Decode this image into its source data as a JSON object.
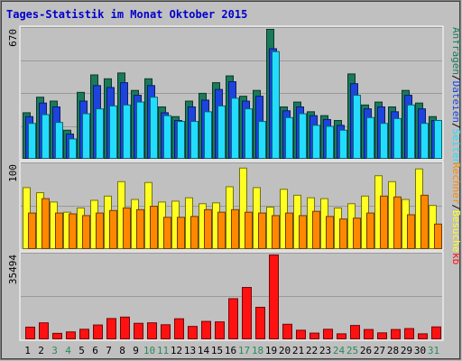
{
  "chart_data": {
    "type": "bar",
    "title": "Tages-Statistik im Monat Oktober 2015",
    "colors": {
      "background": "#c0c0c0",
      "title": "#0000cc",
      "anfragen": "#1a7a5a",
      "dateien": "#1c44dd",
      "seiten": "#22ddff",
      "besuche": "#ffff22",
      "rechner": "#ff8800",
      "kb": "#ff1111",
      "weekend_label": "#2a8a5a",
      "weekday_label": "#000000"
    },
    "days": [
      "1",
      "2",
      "3",
      "4",
      "5",
      "6",
      "7",
      "8",
      "9",
      "10",
      "11",
      "12",
      "13",
      "14",
      "15",
      "16",
      "17",
      "18",
      "19",
      "20",
      "21",
      "22",
      "23",
      "24",
      "25",
      "26",
      "27",
      "28",
      "29",
      "30",
      "31"
    ],
    "weekend_days": [
      "3",
      "4",
      "10",
      "11",
      "17",
      "18",
      "24",
      "25",
      "31"
    ],
    "panels": [
      {
        "id": "top",
        "max_label": "670",
        "ymax": 670,
        "legend": [
          {
            "text": "Anfragen",
            "color": "#1a7a5a"
          },
          {
            "text": "/",
            "color": "#000000"
          },
          {
            "text": "Dateien",
            "color": "#1c44dd"
          },
          {
            "text": "/",
            "color": "#000000"
          },
          {
            "text": "Seiten",
            "color": "#22ddff"
          }
        ],
        "series": [
          {
            "name": "Anfragen",
            "values": [
              240,
              320,
              300,
              150,
              345,
              435,
              415,
              445,
              355,
              415,
              270,
              220,
              300,
              340,
              395,
              430,
              325,
              355,
              670,
              270,
              295,
              245,
              225,
              200,
              440,
              280,
              295,
              270,
              355,
              290,
              220
            ]
          },
          {
            "name": "Dateien",
            "values": [
              220,
              290,
              270,
              130,
              300,
              380,
              370,
              395,
              330,
              380,
              240,
              200,
              270,
              305,
              360,
              400,
              300,
              325,
              570,
              250,
              270,
              225,
              205,
              175,
              390,
              260,
              270,
              245,
              330,
              260,
              200
            ]
          },
          {
            "name": "Seiten",
            "values": [
              185,
              230,
              190,
              105,
              235,
              260,
              275,
              280,
              295,
              320,
              225,
              195,
              195,
              245,
              275,
              315,
              260,
              195,
              555,
              215,
              235,
              175,
              170,
              150,
              330,
              215,
              185,
              210,
              280,
              185,
              200
            ]
          }
        ]
      },
      {
        "id": "middle",
        "max_label": "100",
        "ymax": 100,
        "legend": [
          {
            "text": "Rechner",
            "color": "#ff8800"
          },
          {
            "text": "/",
            "color": "#000000"
          },
          {
            "text": "Besuche",
            "color": "#ffff22"
          }
        ],
        "series": [
          {
            "name": "Besuche",
            "values": [
              73,
              67,
              56,
              44,
              49,
              58,
              63,
              80,
              59,
              79,
              56,
              57,
              61,
              54,
              55,
              74,
              96,
              73,
              50,
              71,
              64,
              61,
              60,
              49,
              54,
              63,
              87,
              80,
              59,
              95,
              52
            ]
          },
          {
            "name": "Rechner",
            "values": [
              43,
              60,
              43,
              42,
              40,
              43,
              46,
              49,
              47,
              51,
              38,
              38,
              39,
              47,
              44,
              47,
              44,
              43,
              40,
              43,
              40,
              45,
              39,
              36,
              37,
              43,
              63,
              62,
              41,
              64,
              30
            ]
          }
        ]
      },
      {
        "id": "bottom",
        "max_label": "35494",
        "ymax": 35494,
        "legend": [
          {
            "text": "kb",
            "color": "#ff1111"
          }
        ],
        "series": [
          {
            "name": "kb",
            "values": [
              5300,
              7100,
              2700,
              3300,
              4400,
              6200,
              8900,
              9500,
              6900,
              7100,
              6300,
              8800,
              5600,
              7700,
              7500,
              17200,
              21900,
              13600,
              35494,
              6500,
              4000,
              2800,
              4400,
              2500,
              6000,
              4300,
              2900,
              4300,
              4700,
              2500,
              5400
            ]
          }
        ]
      }
    ]
  }
}
